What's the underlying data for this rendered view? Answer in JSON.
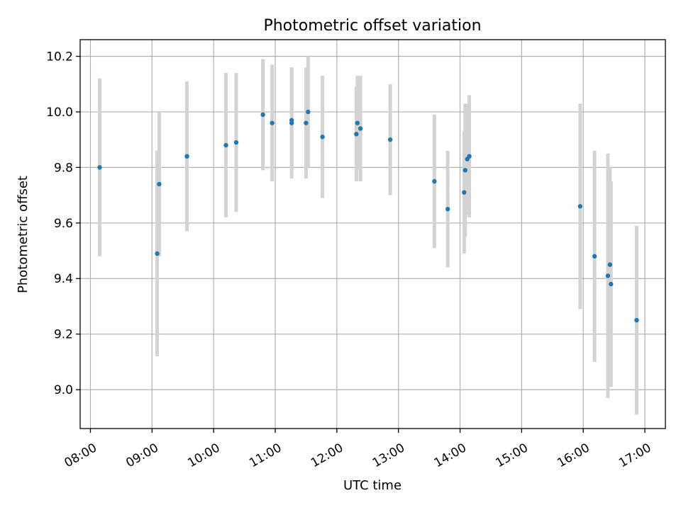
{
  "chart_data": {
    "type": "scatter",
    "title": "Photometric offset variation",
    "xlabel": "UTC time",
    "ylabel": "Photometric offset",
    "x_axis_kind": "time",
    "xlim": [
      "07:50",
      "17:20"
    ],
    "ylim": [
      8.86,
      10.26
    ],
    "x_ticks": [
      "08:00",
      "09:00",
      "10:00",
      "11:00",
      "12:00",
      "13:00",
      "14:00",
      "15:00",
      "16:00",
      "17:00"
    ],
    "y_ticks": [
      9.0,
      9.2,
      9.4,
      9.6,
      9.8,
      10.0,
      10.2
    ],
    "y_tick_labels": [
      "9.0",
      "9.2",
      "9.4",
      "9.6",
      "9.8",
      "10.0",
      "10.2"
    ],
    "grid": true,
    "marker_color": "#1f77b4",
    "errorbar_color": "#d3d3d3",
    "points": [
      {
        "time": "08:09",
        "y": 9.8,
        "err": 0.32
      },
      {
        "time": "09:05",
        "y": 9.49,
        "err": 0.37
      },
      {
        "time": "09:07",
        "y": 9.74,
        "err": 0.26
      },
      {
        "time": "09:34",
        "y": 9.84,
        "err": 0.27
      },
      {
        "time": "10:12",
        "y": 9.88,
        "err": 0.26
      },
      {
        "time": "10:22",
        "y": 9.89,
        "err": 0.25
      },
      {
        "time": "10:48",
        "y": 9.99,
        "err": 0.2
      },
      {
        "time": "10:57",
        "y": 9.96,
        "err": 0.21
      },
      {
        "time": "11:16",
        "y": 9.97,
        "err": 0.19
      },
      {
        "time": "11:16",
        "y": 9.96,
        "err": 0.2
      },
      {
        "time": "11:30",
        "y": 9.96,
        "err": 0.2
      },
      {
        "time": "11:32",
        "y": 10.0,
        "err": 0.2
      },
      {
        "time": "11:46",
        "y": 9.91,
        "err": 0.22
      },
      {
        "time": "12:19",
        "y": 9.92,
        "err": 0.17
      },
      {
        "time": "12:20",
        "y": 9.96,
        "err": 0.17
      },
      {
        "time": "12:23",
        "y": 9.94,
        "err": 0.19
      },
      {
        "time": "12:52",
        "y": 9.9,
        "err": 0.2
      },
      {
        "time": "13:35",
        "y": 9.75,
        "err": 0.24
      },
      {
        "time": "13:48",
        "y": 9.65,
        "err": 0.21
      },
      {
        "time": "14:04",
        "y": 9.71,
        "err": 0.22
      },
      {
        "time": "14:05",
        "y": 9.79,
        "err": 0.24
      },
      {
        "time": "14:07",
        "y": 9.83,
        "err": 0.2
      },
      {
        "time": "14:09",
        "y": 9.84,
        "err": 0.22
      },
      {
        "time": "15:57",
        "y": 9.66,
        "err": 0.37
      },
      {
        "time": "16:11",
        "y": 9.48,
        "err": 0.38
      },
      {
        "time": "16:24",
        "y": 9.41,
        "err": 0.44
      },
      {
        "time": "16:26",
        "y": 9.45,
        "err": 0.35
      },
      {
        "time": "16:27",
        "y": 9.38,
        "err": 0.37
      },
      {
        "time": "16:52",
        "y": 9.25,
        "err": 0.34
      }
    ]
  }
}
